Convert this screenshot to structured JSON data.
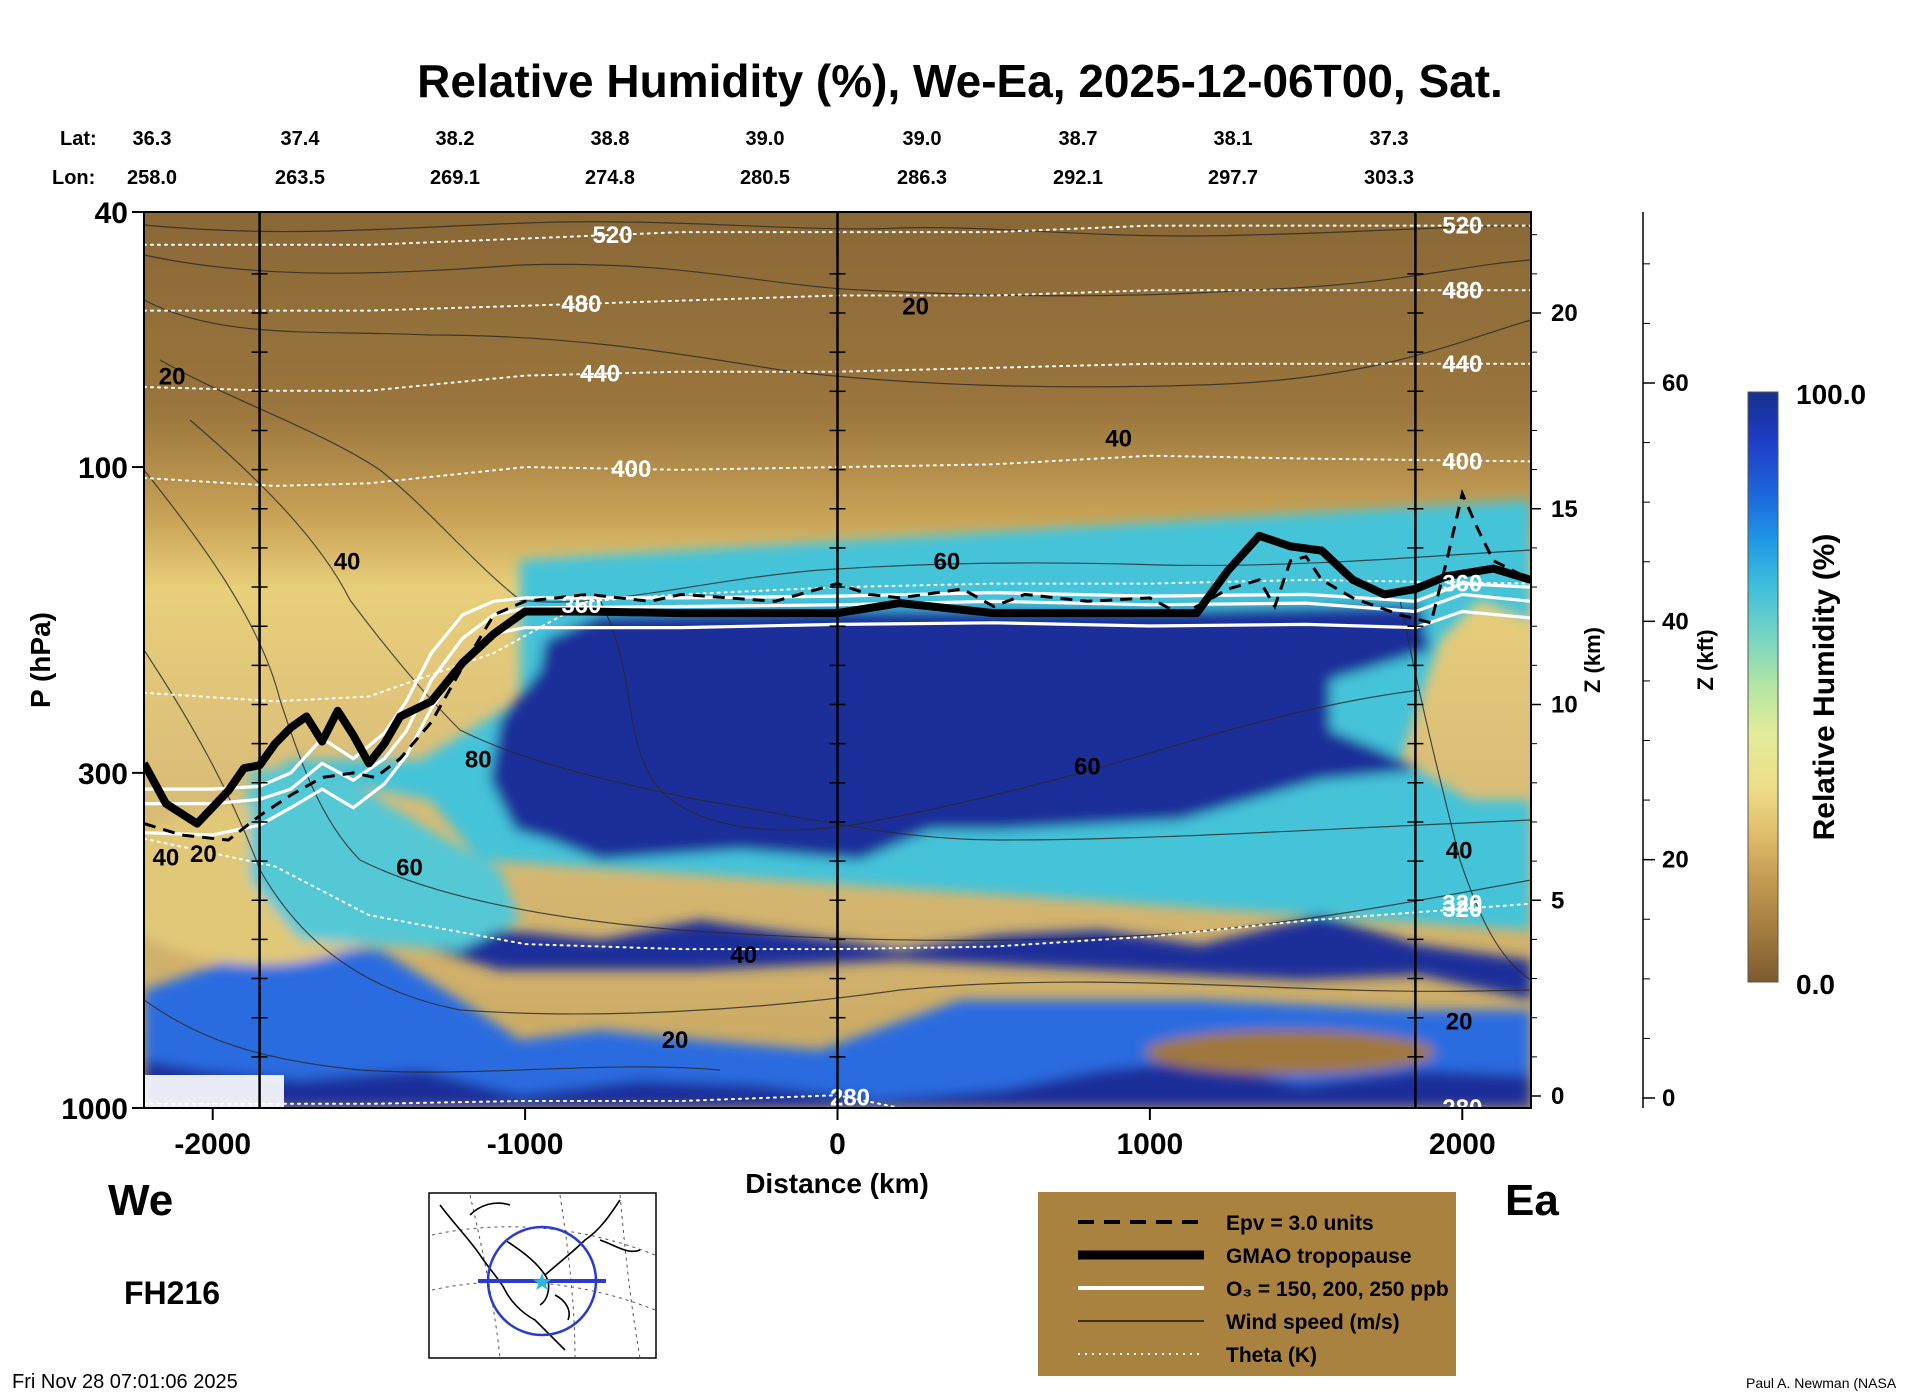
{
  "chart_data": {
    "type": "heatmap",
    "title": "Relative Humidity (%), We-Ea, 2025-12-06T00, Sat.",
    "xlabel": "Distance (km)",
    "ylabel": "P (hPa)",
    "xlim": [
      -2220,
      2220
    ],
    "ylim": [
      1000,
      40
    ],
    "y_scale": "log",
    "x_ticks": [
      -2000,
      -1000,
      0,
      1000,
      2000
    ],
    "x_tick_labels": [
      "-2000",
      "-1000",
      "0",
      "1000",
      "2000"
    ],
    "y_ticks": [
      40,
      100,
      300,
      1000
    ],
    "y_tick_labels": [
      "40",
      "100",
      "300",
      "1000"
    ],
    "lat_label": "Lat:",
    "lon_label": "Lon:",
    "lats": [
      "36.3",
      "37.4",
      "38.2",
      "38.8",
      "39.0",
      "39.0",
      "38.7",
      "38.1",
      "37.3"
    ],
    "lons": [
      "258.0",
      "263.5",
      "269.1",
      "274.8",
      "280.5",
      "286.3",
      "292.1",
      "297.7",
      "303.3"
    ],
    "z_km_label": "Z (km)",
    "z_km_ticks": [
      0,
      5,
      10,
      15,
      20
    ],
    "z_km_tick_labels": [
      "0",
      "5",
      "10",
      "15",
      "20"
    ],
    "z_kft_label": "Z (kft)",
    "z_kft_ticks": [
      0,
      20,
      40,
      60
    ],
    "z_kft_tick_labels": [
      "0",
      "20",
      "40",
      "60"
    ],
    "colorbar": {
      "label": "Relative Humidity (%)",
      "min": 0.0,
      "max": 100.0,
      "min_label": "0.0",
      "max_label": "100.0",
      "colors": [
        "#7d5a2e",
        "#a07a3e",
        "#c29a52",
        "#dfbe6a",
        "#eedd88",
        "#e2ec9a",
        "#b4e6a2",
        "#7ad6c0",
        "#3fbfdc",
        "#1f96e6",
        "#1e64dc",
        "#1e3cc4",
        "#172f8c"
      ]
    },
    "vertical_lines_km": [
      -1850,
      0,
      1850
    ],
    "tropopause": [
      [
        -2220,
        290
      ],
      [
        -2150,
        335
      ],
      [
        -2050,
        360
      ],
      [
        -1950,
        320
      ],
      [
        -1900,
        295
      ],
      [
        -1850,
        292
      ],
      [
        -1800,
        270
      ],
      [
        -1750,
        255
      ],
      [
        -1700,
        245
      ],
      [
        -1650,
        268
      ],
      [
        -1600,
        240
      ],
      [
        -1550,
        262
      ],
      [
        -1500,
        290
      ],
      [
        -1450,
        270
      ],
      [
        -1400,
        245
      ],
      [
        -1300,
        232
      ],
      [
        -1200,
        202
      ],
      [
        -1100,
        182
      ],
      [
        -1000,
        168
      ],
      [
        -800,
        168
      ],
      [
        -500,
        169
      ],
      [
        0,
        169
      ],
      [
        200,
        163
      ],
      [
        500,
        169
      ],
      [
        1000,
        169
      ],
      [
        1150,
        169
      ],
      [
        1250,
        145
      ],
      [
        1350,
        128
      ],
      [
        1450,
        133
      ],
      [
        1550,
        135
      ],
      [
        1650,
        150
      ],
      [
        1750,
        158
      ],
      [
        1850,
        155
      ],
      [
        1950,
        148
      ],
      [
        2100,
        144
      ],
      [
        2220,
        150
      ]
    ],
    "ozone_contours": [
      {
        "name": "150",
        "points": [
          [
            -2220,
            318
          ],
          [
            -2000,
            318
          ],
          [
            -1850,
            315
          ],
          [
            -1750,
            300
          ],
          [
            -1650,
            265
          ],
          [
            -1550,
            285
          ],
          [
            -1450,
            260
          ],
          [
            -1380,
            232
          ],
          [
            -1300,
            195
          ],
          [
            -1200,
            170
          ],
          [
            -1100,
            162
          ],
          [
            -1000,
            160
          ],
          [
            -500,
            160
          ],
          [
            0,
            159
          ],
          [
            500,
            157
          ],
          [
            1000,
            159
          ],
          [
            1500,
            158
          ],
          [
            1850,
            162
          ],
          [
            2000,
            152
          ],
          [
            2220,
            154
          ]
        ]
      },
      {
        "name": "200",
        "points": [
          [
            -2220,
            335
          ],
          [
            -2000,
            335
          ],
          [
            -1850,
            330
          ],
          [
            -1750,
            318
          ],
          [
            -1650,
            290
          ],
          [
            -1550,
            308
          ],
          [
            -1450,
            285
          ],
          [
            -1380,
            258
          ],
          [
            -1300,
            215
          ],
          [
            -1200,
            185
          ],
          [
            -1100,
            170
          ],
          [
            -1000,
            166
          ],
          [
            -500,
            165
          ],
          [
            0,
            164
          ],
          [
            500,
            162
          ],
          [
            1000,
            164
          ],
          [
            1500,
            163
          ],
          [
            1850,
            168
          ],
          [
            2000,
            158
          ],
          [
            2220,
            162
          ]
        ]
      },
      {
        "name": "250",
        "points": [
          [
            -2220,
            372
          ],
          [
            -2000,
            375
          ],
          [
            -1850,
            362
          ],
          [
            -1750,
            340
          ],
          [
            -1650,
            318
          ],
          [
            -1550,
            340
          ],
          [
            -1450,
            312
          ],
          [
            -1380,
            282
          ],
          [
            -1300,
            238
          ],
          [
            -1200,
            202
          ],
          [
            -1100,
            182
          ],
          [
            -1000,
            178
          ],
          [
            -500,
            178
          ],
          [
            0,
            176
          ],
          [
            500,
            175
          ],
          [
            1000,
            177
          ],
          [
            1500,
            176
          ],
          [
            1850,
            178
          ],
          [
            2000,
            168
          ],
          [
            2220,
            172
          ]
        ]
      }
    ],
    "epv_contour": [
      [
        -2220,
        360
      ],
      [
        -2100,
        375
      ],
      [
        -1950,
        382
      ],
      [
        -1850,
        350
      ],
      [
        -1750,
        325
      ],
      [
        -1650,
        305
      ],
      [
        -1550,
        300
      ],
      [
        -1480,
        305
      ],
      [
        -1400,
        285
      ],
      [
        -1300,
        250
      ],
      [
        -1200,
        205
      ],
      [
        -1100,
        170
      ],
      [
        -1000,
        162
      ],
      [
        -800,
        158
      ],
      [
        -600,
        162
      ],
      [
        -500,
        158
      ],
      [
        -200,
        162
      ],
      [
        0,
        152
      ],
      [
        100,
        158
      ],
      [
        200,
        160
      ],
      [
        400,
        155
      ],
      [
        500,
        165
      ],
      [
        600,
        158
      ],
      [
        800,
        162
      ],
      [
        1000,
        160
      ],
      [
        1100,
        170
      ],
      [
        1200,
        160
      ],
      [
        1250,
        155
      ],
      [
        1350,
        150
      ],
      [
        1400,
        165
      ],
      [
        1450,
        140
      ],
      [
        1500,
        138
      ],
      [
        1550,
        150
      ],
      [
        1650,
        160
      ],
      [
        1800,
        170
      ],
      [
        1900,
        175
      ],
      [
        1950,
        140
      ],
      [
        2000,
        110
      ],
      [
        2050,
        125
      ],
      [
        2100,
        140
      ],
      [
        2220,
        150
      ]
    ],
    "theta_levels": [
      {
        "label": "280",
        "label_x": 40,
        "points": [
          [
            -2220,
            985
          ],
          [
            -1500,
            985
          ],
          [
            -1000,
            975
          ],
          [
            -500,
            975
          ],
          [
            0,
            955
          ],
          [
            200,
            1000
          ]
        ]
      },
      {
        "label": "320",
        "label_x": 2000,
        "points": [
          [
            -2220,
            380
          ],
          [
            -1800,
            420
          ],
          [
            -1500,
            500
          ],
          [
            -1000,
            555
          ],
          [
            -500,
            565
          ],
          [
            0,
            565
          ],
          [
            500,
            560
          ],
          [
            1000,
            540
          ],
          [
            1500,
            510
          ],
          [
            2220,
            480
          ]
        ]
      },
      {
        "label": "360",
        "label_x": -820,
        "points": [
          [
            -2220,
            225
          ],
          [
            -1800,
            232
          ],
          [
            -1500,
            228
          ],
          [
            -1100,
            195
          ],
          [
            -800,
            162
          ],
          [
            -500,
            158
          ],
          [
            0,
            154
          ],
          [
            500,
            152
          ],
          [
            1000,
            152
          ],
          [
            1500,
            150
          ],
          [
            2220,
            152
          ]
        ]
      },
      {
        "label": "400",
        "label_x": -660,
        "points": [
          [
            -2220,
            104
          ],
          [
            -1800,
            107
          ],
          [
            -1500,
            106
          ],
          [
            -1000,
            100
          ],
          [
            -500,
            101
          ],
          [
            0,
            100
          ],
          [
            500,
            99
          ],
          [
            1000,
            96
          ],
          [
            1500,
            97
          ],
          [
            2220,
            98
          ]
        ]
      },
      {
        "label": "440",
        "label_x": -760,
        "points": [
          [
            -2220,
            75
          ],
          [
            -1800,
            76
          ],
          [
            -1500,
            76
          ],
          [
            -1000,
            72
          ],
          [
            -500,
            71
          ],
          [
            0,
            71
          ],
          [
            500,
            70
          ],
          [
            1000,
            69
          ],
          [
            1500,
            69
          ],
          [
            2220,
            69
          ]
        ]
      },
      {
        "label": "480",
        "label_x": -820,
        "points": [
          [
            -2220,
            57
          ],
          [
            -1500,
            57
          ],
          [
            -1000,
            56
          ],
          [
            -500,
            55
          ],
          [
            0,
            54
          ],
          [
            500,
            54
          ],
          [
            1000,
            53
          ],
          [
            1500,
            53
          ],
          [
            2220,
            53
          ]
        ]
      },
      {
        "label": "520",
        "label_x": -720,
        "points": [
          [
            -2220,
            45
          ],
          [
            -1500,
            45
          ],
          [
            -1000,
            44
          ],
          [
            -500,
            43
          ],
          [
            0,
            43
          ],
          [
            500,
            43
          ],
          [
            1000,
            42
          ],
          [
            1500,
            42
          ],
          [
            2220,
            42
          ]
        ]
      }
    ],
    "wind_labels": [
      {
        "text": "20",
        "x": 250,
        "p": 56
      },
      {
        "text": "20",
        "x": -2130,
        "p": 72
      },
      {
        "text": "40",
        "x": 900,
        "p": 90
      },
      {
        "text": "40",
        "x": -1570,
        "p": 140
      },
      {
        "text": "60",
        "x": 350,
        "p": 140
      },
      {
        "text": "80",
        "x": -1150,
        "p": 285
      },
      {
        "text": "60",
        "x": 800,
        "p": 292
      },
      {
        "text": "40",
        "x": 1990,
        "p": 395
      },
      {
        "text": "60",
        "x": -1370,
        "p": 420
      },
      {
        "text": "20",
        "x": -2030,
        "p": 400
      },
      {
        "text": "40",
        "x": -2150,
        "p": 405
      },
      {
        "text": "40",
        "x": -300,
        "p": 575
      },
      {
        "text": "20",
        "x": 1990,
        "p": 730
      },
      {
        "text": "20",
        "x": -520,
        "p": 780
      }
    ],
    "legend": [
      {
        "style": "dashed",
        "label": "Epv = 3.0 units"
      },
      {
        "style": "thick",
        "label": "GMAO tropopause"
      },
      {
        "style": "white",
        "label": "O₃ = 150, 200, 250 ppb"
      },
      {
        "style": "thin",
        "label": "Wind speed (m/s)"
      },
      {
        "style": "dotted",
        "label": "Theta (K)"
      }
    ]
  },
  "labels": {
    "west": "We",
    "east": "Ea",
    "forecast_hour": "FH216",
    "timestamp": "Fri Nov 28 07:01:06 2025",
    "author": "Paul A. Newman (NASA"
  }
}
